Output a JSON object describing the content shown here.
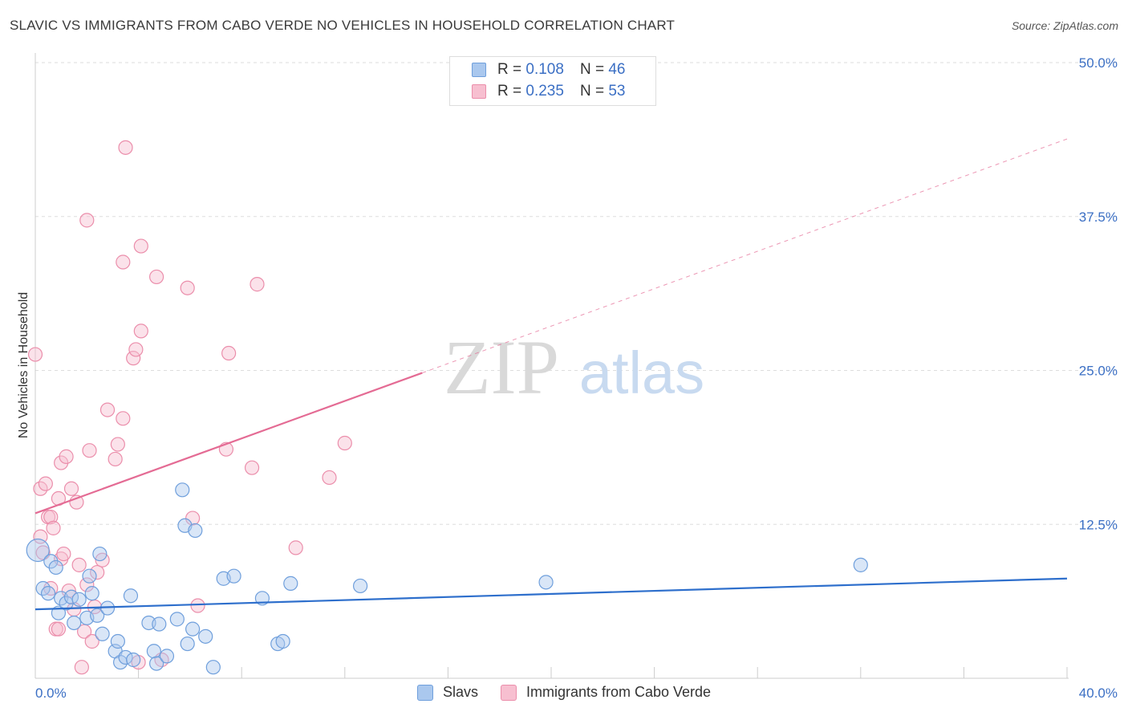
{
  "title": "SLAVIC VS IMMIGRANTS FROM CABO VERDE NO VEHICLES IN HOUSEHOLD CORRELATION CHART",
  "source": "Source: ZipAtlas.com",
  "watermark": {
    "zip": "ZIP",
    "atlas": "atlas"
  },
  "legend": {
    "rows": [
      {
        "r_label": "R =",
        "r_value": "0.108",
        "n_label": "N =",
        "n_value": "46"
      },
      {
        "r_label": "R =",
        "r_value": "0.235",
        "n_label": "N =",
        "n_value": "53"
      }
    ]
  },
  "bottom_legend": {
    "slavs": "Slavs",
    "cabo": "Immigrants from Cabo Verde"
  },
  "colors": {
    "slavs_fill": "#aac8ee",
    "slavs_stroke": "#6f9fdc",
    "slavs_line": "#2e6fcc",
    "cabo_fill": "#f7bfd0",
    "cabo_stroke": "#eb8eab",
    "cabo_line": "#e46b94",
    "tick_text": "#3b6fc4",
    "grid": "#dddddd"
  },
  "chart_data": {
    "type": "scatter",
    "title": "SLAVIC VS IMMIGRANTS FROM CABO VERDE NO VEHICLES IN HOUSEHOLD CORRELATION CHART",
    "xlabel": "",
    "ylabel": "No Vehicles in Household",
    "xlim": [
      0,
      40
    ],
    "ylim": [
      0,
      50
    ],
    "x_tick_labels": [
      "0.0%",
      "40.0%"
    ],
    "y_ticks": [
      12.5,
      25.0,
      37.5,
      50.0
    ],
    "y_tick_labels": [
      "12.5%",
      "25.0%",
      "37.5%",
      "50.0%"
    ],
    "grid": true,
    "legend_position": "top-center",
    "series": [
      {
        "name": "Slavs",
        "points": [
          [
            0.1,
            10.4
          ],
          [
            0.3,
            7.3
          ],
          [
            0.5,
            6.9
          ],
          [
            0.6,
            9.5
          ],
          [
            0.8,
            9.0
          ],
          [
            0.9,
            5.3
          ],
          [
            1.0,
            6.5
          ],
          [
            1.2,
            6.1
          ],
          [
            1.5,
            4.5
          ],
          [
            1.4,
            6.6
          ],
          [
            1.7,
            6.4
          ],
          [
            2.0,
            4.9
          ],
          [
            2.1,
            8.3
          ],
          [
            2.2,
            6.9
          ],
          [
            2.4,
            5.1
          ],
          [
            2.5,
            10.1
          ],
          [
            2.6,
            3.6
          ],
          [
            2.8,
            5.7
          ],
          [
            3.1,
            2.2
          ],
          [
            3.2,
            3.0
          ],
          [
            3.3,
            1.3
          ],
          [
            3.5,
            1.7
          ],
          [
            3.7,
            6.7
          ],
          [
            3.8,
            1.5
          ],
          [
            4.4,
            4.5
          ],
          [
            4.6,
            2.2
          ],
          [
            4.7,
            1.2
          ],
          [
            4.8,
            4.4
          ],
          [
            5.1,
            1.8
          ],
          [
            5.5,
            4.8
          ],
          [
            5.7,
            15.3
          ],
          [
            5.8,
            12.4
          ],
          [
            5.9,
            2.8
          ],
          [
            6.1,
            4.0
          ],
          [
            6.2,
            12.0
          ],
          [
            6.6,
            3.4
          ],
          [
            6.9,
            0.9
          ],
          [
            7.3,
            8.1
          ],
          [
            7.7,
            8.3
          ],
          [
            8.8,
            6.5
          ],
          [
            9.4,
            2.8
          ],
          [
            9.6,
            3.0
          ],
          [
            9.9,
            7.7
          ],
          [
            12.6,
            7.5
          ],
          [
            19.8,
            7.8
          ],
          [
            32.0,
            9.2
          ]
        ],
        "trend": {
          "x": [
            0,
            40
          ],
          "y": [
            5.6,
            8.1
          ]
        }
      },
      {
        "name": "Immigrants from Cabo Verde",
        "points": [
          [
            0.0,
            26.3
          ],
          [
            0.2,
            15.4
          ],
          [
            0.2,
            11.5
          ],
          [
            0.3,
            10.2
          ],
          [
            0.4,
            15.8
          ],
          [
            0.5,
            13.1
          ],
          [
            0.6,
            13.1
          ],
          [
            0.6,
            7.3
          ],
          [
            0.7,
            12.2
          ],
          [
            0.8,
            4.0
          ],
          [
            0.9,
            14.6
          ],
          [
            0.9,
            4.0
          ],
          [
            1.0,
            17.5
          ],
          [
            1.0,
            9.7
          ],
          [
            1.1,
            10.1
          ],
          [
            1.2,
            18.0
          ],
          [
            1.3,
            7.1
          ],
          [
            1.4,
            15.4
          ],
          [
            1.5,
            5.6
          ],
          [
            1.6,
            14.3
          ],
          [
            1.7,
            9.2
          ],
          [
            1.8,
            0.9
          ],
          [
            1.9,
            3.8
          ],
          [
            2.0,
            7.6
          ],
          [
            2.1,
            18.5
          ],
          [
            2.2,
            3.0
          ],
          [
            2.3,
            5.8
          ],
          [
            2.4,
            8.6
          ],
          [
            2.6,
            9.6
          ],
          [
            2.8,
            21.8
          ],
          [
            3.1,
            17.8
          ],
          [
            3.2,
            19.0
          ],
          [
            3.4,
            21.1
          ],
          [
            3.5,
            43.1
          ],
          [
            3.8,
            26.0
          ],
          [
            3.9,
            26.7
          ],
          [
            4.0,
            1.3
          ],
          [
            4.1,
            28.2
          ],
          [
            4.1,
            35.1
          ],
          [
            4.7,
            32.6
          ],
          [
            4.9,
            1.5
          ],
          [
            5.9,
            31.7
          ],
          [
            6.1,
            13.0
          ],
          [
            6.3,
            5.9
          ],
          [
            7.4,
            18.6
          ],
          [
            7.5,
            26.4
          ],
          [
            8.4,
            17.1
          ],
          [
            8.6,
            32.0
          ],
          [
            10.1,
            10.6
          ],
          [
            11.4,
            16.3
          ],
          [
            12.0,
            19.1
          ],
          [
            2.0,
            37.2
          ],
          [
            3.4,
            33.8
          ]
        ],
        "trend": {
          "x": [
            0,
            15
          ],
          "y": [
            13.4,
            24.8
          ]
        },
        "trend_extension": {
          "x": [
            15,
            40
          ],
          "y": [
            24.8,
            43.8
          ]
        }
      }
    ]
  }
}
